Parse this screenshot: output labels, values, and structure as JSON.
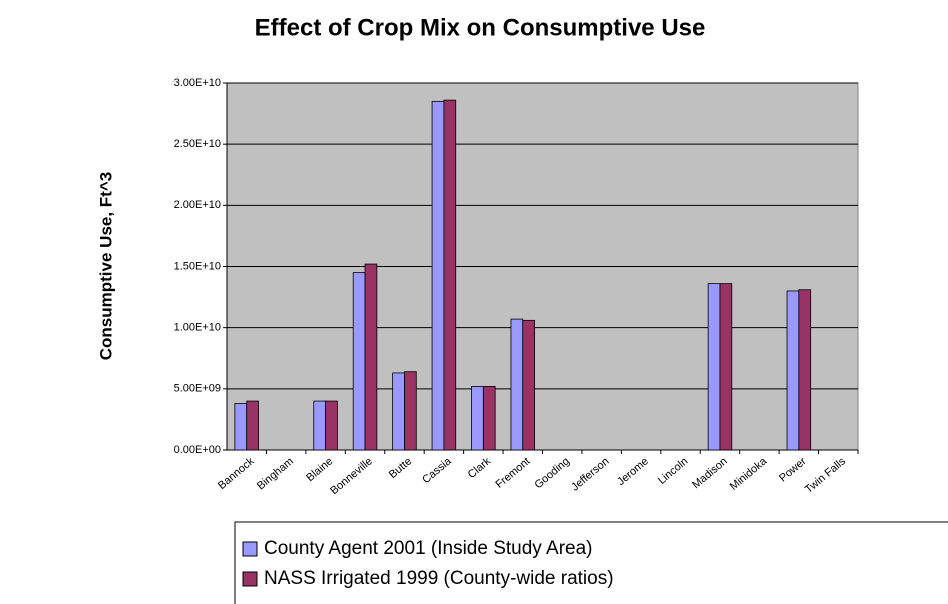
{
  "chart_data": {
    "type": "bar",
    "title": "Effect of Crop Mix on Consumptive Use",
    "y_label": "Consumptive Use, Ft^3",
    "categories": [
      "Bannock",
      "Bingham",
      "Blaine",
      "Bonneville",
      "Butte",
      "Cassia",
      "Clark",
      "Fremont",
      "Gooding",
      "Jefferson",
      "Jerome",
      "Lincoln",
      "Madison",
      "Minidoka",
      "Power",
      "Twin Falls"
    ],
    "series": [
      {
        "name": "County Agent 2001 (Inside Study Area)",
        "color": "#9999ff",
        "values": [
          3800000000,
          0,
          4000000000,
          14500000000,
          6300000000,
          28500000000,
          5200000000,
          10700000000,
          0,
          0,
          0,
          0,
          13600000000,
          0,
          13000000000,
          0
        ]
      },
      {
        "name": "NASS Irrigated 1999 (County-wide ratios)",
        "color": "#993366",
        "values": [
          4000000000,
          0,
          4000000000,
          15200000000,
          6400000000,
          28600000000,
          5200000000,
          10600000000,
          0,
          0,
          0,
          0,
          13600000000,
          0,
          13100000000,
          0
        ]
      }
    ],
    "ylim": [
      0,
      30000000000
    ],
    "yticks": [
      {
        "value": 0,
        "label": "0.00E+00"
      },
      {
        "value": 5000000000,
        "label": "5.00E+09"
      },
      {
        "value": 10000000000,
        "label": "1.00E+10"
      },
      {
        "value": 15000000000,
        "label": "1.50E+10"
      },
      {
        "value": 20000000000,
        "label": "2.00E+10"
      },
      {
        "value": 25000000000,
        "label": "2.50E+10"
      },
      {
        "value": 30000000000,
        "label": "3.00E+10"
      }
    ],
    "grid": true
  }
}
